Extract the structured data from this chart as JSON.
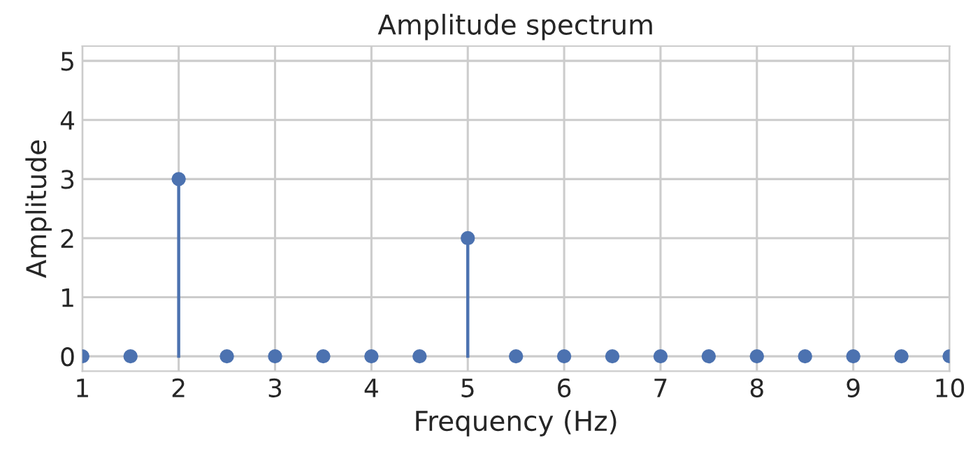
{
  "chart_data": {
    "type": "lollipop",
    "title": "Amplitude spectrum",
    "xlabel": "Frequency (Hz)",
    "ylabel": "Amplitude",
    "x": [
      1,
      1.5,
      2,
      2.5,
      3,
      3.5,
      4,
      4.5,
      5,
      5.5,
      6,
      6.5,
      7,
      7.5,
      8,
      8.5,
      9,
      9.5,
      10
    ],
    "values": [
      0,
      0,
      3,
      0,
      0,
      0,
      0,
      0,
      2,
      0,
      0,
      0,
      0,
      0,
      0,
      0,
      0,
      0,
      0
    ],
    "color": "#4c72b0",
    "marker": "circle",
    "xlim": [
      1,
      10
    ],
    "xticks": [
      1,
      2,
      3,
      4,
      5,
      6,
      7,
      8,
      9,
      10
    ],
    "ylim": [
      -0.25,
      5.25
    ],
    "yticks": [
      0,
      1,
      2,
      3,
      4,
      5
    ],
    "grid": true
  }
}
